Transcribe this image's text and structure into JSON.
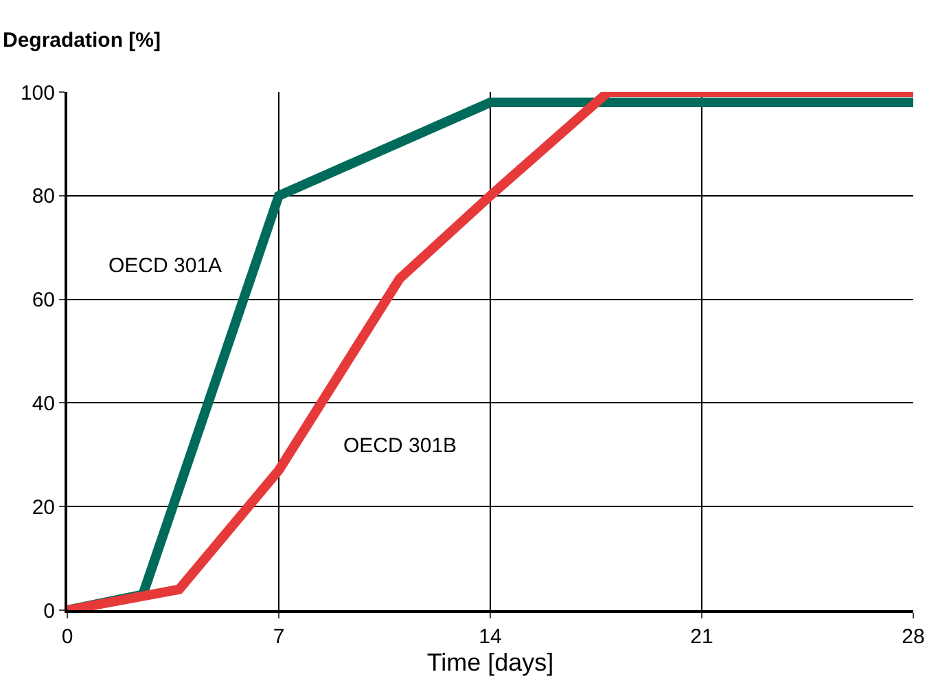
{
  "chart_data": {
    "type": "line",
    "ylabel": "Degradation [%]",
    "xlabel": "Time [days]",
    "series": [
      {
        "name": "OECD 301A",
        "color": "#006b5a",
        "x": [
          0,
          2.5,
          7,
          14,
          28
        ],
        "values": [
          0,
          3,
          80,
          98,
          98
        ]
      },
      {
        "name": "OECD 301B",
        "color": "#e63a3a",
        "x": [
          0,
          3.7,
          7,
          11,
          14,
          17.9,
          28
        ],
        "values": [
          0,
          4,
          27,
          64,
          80,
          100,
          100
        ]
      }
    ],
    "xlim": [
      0,
      28
    ],
    "xticks": [
      0,
      7,
      14,
      21,
      28
    ],
    "ylim": [
      0,
      100
    ],
    "yticks": [
      0,
      20,
      40,
      60,
      80,
      100
    ],
    "grid": true,
    "legend": false,
    "line_style": "solid",
    "marker": "none"
  }
}
